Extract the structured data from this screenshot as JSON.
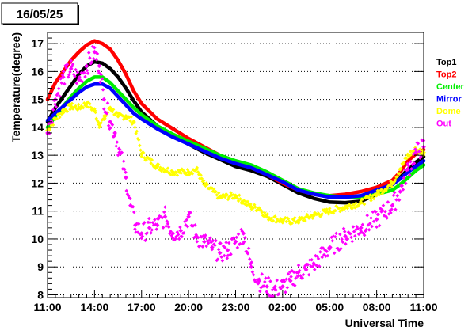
{
  "chart_data": {
    "type": "line",
    "title": "16/05/25",
    "xlabel": "Universal Time",
    "ylabel": "Temperature(degree)",
    "x_ticks": [
      "11:00",
      "14:00",
      "17:00",
      "20:00",
      "23:00",
      "02:00",
      "05:00",
      "08:00",
      "11:00"
    ],
    "x_hours": [
      0,
      3,
      6,
      9,
      12,
      15,
      18,
      21,
      24
    ],
    "xlim": [
      0,
      24
    ],
    "ylim": [
      7.9,
      17.4
    ],
    "y_ticks": [
      8,
      9,
      10,
      11,
      12,
      13,
      14,
      15,
      16,
      17
    ],
    "grid": {
      "horizontal_dotted": true
    },
    "legend_position": "right",
    "series": [
      {
        "name": "Top1",
        "color": "#000000",
        "kind": "thick-line",
        "x": [
          0,
          0.5,
          1,
          1.5,
          2,
          2.5,
          3,
          3.5,
          4,
          4.5,
          5,
          5.5,
          6,
          7,
          8,
          9,
          10,
          11,
          12,
          13,
          14,
          15,
          16,
          17,
          18,
          19,
          20,
          21,
          22,
          22.5,
          23,
          23.5,
          24
        ],
        "values": [
          14.2,
          14.7,
          15.1,
          15.5,
          15.9,
          16.2,
          16.35,
          16.3,
          16.1,
          15.8,
          15.4,
          14.95,
          14.55,
          14.05,
          13.7,
          13.4,
          13.1,
          12.85,
          12.6,
          12.45,
          12.25,
          11.95,
          11.65,
          11.45,
          11.32,
          11.3,
          11.35,
          11.6,
          11.95,
          12.2,
          12.5,
          12.75,
          12.95
        ]
      },
      {
        "name": "Top2",
        "color": "#ff0000",
        "kind": "thick-line",
        "x": [
          0,
          0.5,
          1,
          1.5,
          2,
          2.5,
          3,
          3.5,
          4,
          4.5,
          5,
          5.5,
          6,
          7,
          8,
          9,
          10,
          11,
          12,
          13,
          14,
          15,
          16,
          17,
          18,
          19,
          20,
          21,
          22,
          22.5,
          23,
          23.5,
          24
        ],
        "values": [
          15.0,
          15.6,
          16.0,
          16.4,
          16.7,
          16.95,
          17.1,
          17.0,
          16.8,
          16.4,
          15.9,
          15.3,
          14.85,
          14.3,
          13.95,
          13.6,
          13.3,
          13.0,
          12.75,
          12.55,
          12.3,
          12.0,
          11.75,
          11.6,
          11.55,
          11.6,
          11.7,
          11.85,
          12.1,
          12.4,
          12.8,
          13.05,
          13.2
        ]
      },
      {
        "name": "Center",
        "color": "#00ee00",
        "kind": "thick-line",
        "x": [
          0,
          0.5,
          1,
          1.5,
          2,
          2.5,
          3,
          3.5,
          4,
          4.5,
          5,
          5.5,
          6,
          7,
          8,
          9,
          10,
          11,
          12,
          13,
          14,
          15,
          16,
          17,
          18,
          19,
          20,
          21,
          22,
          22.5,
          23,
          23.5,
          24
        ],
        "values": [
          14.0,
          14.4,
          14.75,
          15.1,
          15.4,
          15.65,
          15.8,
          15.8,
          15.6,
          15.3,
          15.0,
          14.7,
          14.45,
          14.05,
          13.75,
          13.5,
          13.25,
          13.0,
          12.8,
          12.65,
          12.4,
          12.1,
          11.8,
          11.65,
          11.55,
          11.5,
          11.5,
          11.6,
          11.75,
          11.95,
          12.2,
          12.45,
          12.65
        ]
      },
      {
        "name": "Mirror",
        "color": "#0000ff",
        "kind": "thick-line",
        "x": [
          0,
          0.5,
          1,
          1.5,
          2,
          2.5,
          3,
          3.5,
          4,
          4.5,
          5,
          5.5,
          6,
          7,
          8,
          9,
          10,
          11,
          12,
          13,
          14,
          15,
          16,
          17,
          18,
          19,
          20,
          21,
          22,
          22.5,
          23,
          23.5,
          24
        ],
        "values": [
          14.25,
          14.5,
          14.75,
          15.0,
          15.25,
          15.45,
          15.55,
          15.55,
          15.4,
          15.1,
          14.8,
          14.5,
          14.3,
          13.95,
          13.65,
          13.4,
          13.15,
          12.9,
          12.7,
          12.55,
          12.3,
          12.05,
          11.75,
          11.6,
          11.5,
          11.5,
          11.55,
          11.75,
          11.95,
          12.15,
          12.4,
          12.6,
          12.8
        ]
      },
      {
        "name": "Dome",
        "color": "#ffff00",
        "kind": "scatter-band",
        "x": [
          0,
          0.5,
          1,
          1.5,
          2,
          2.5,
          3,
          3.3,
          3.6,
          4,
          4.5,
          5,
          5.5,
          6,
          7,
          8,
          9,
          9.5,
          10,
          11,
          12,
          13,
          13.5,
          14,
          15,
          16,
          17,
          18,
          19,
          20,
          21,
          22,
          22.5,
          23,
          23.5,
          24
        ],
        "values": [
          13.9,
          14.3,
          14.6,
          14.75,
          14.7,
          14.85,
          14.6,
          14.1,
          14.3,
          14.7,
          14.4,
          14.4,
          14.2,
          13.05,
          12.6,
          12.4,
          12.4,
          12.5,
          11.95,
          11.5,
          11.55,
          11.15,
          11.1,
          10.8,
          10.65,
          10.65,
          10.85,
          11.0,
          11.15,
          11.3,
          11.6,
          12.0,
          12.5,
          13.0,
          13.2,
          13.1
        ]
      },
      {
        "name": "Out",
        "color": "#ff00ff",
        "kind": "scatter",
        "x": [
          0,
          0.5,
          1,
          1.5,
          2,
          2.5,
          3,
          3.3,
          3.6,
          4,
          4.3,
          4.6,
          5,
          5.3,
          5.6,
          6,
          6.5,
          7,
          7.5,
          8,
          8.5,
          9,
          9.5,
          10,
          10.5,
          11,
          11.5,
          12,
          12.5,
          13,
          13.5,
          14,
          14.5,
          15,
          15.5,
          16,
          16.5,
          17,
          18,
          19,
          20,
          21,
          22,
          22.5,
          23,
          23.5,
          24
        ],
        "values": [
          13.8,
          15.0,
          15.8,
          16.1,
          15.7,
          16.2,
          16.7,
          16.2,
          15.0,
          14.2,
          13.8,
          13.1,
          12.2,
          11.2,
          10.5,
          10.2,
          10.4,
          10.5,
          10.8,
          10.2,
          10.3,
          10.8,
          10.1,
          9.9,
          9.7,
          9.5,
          9.6,
          9.9,
          10.2,
          9.0,
          8.5,
          8.3,
          8.2,
          8.3,
          8.5,
          8.8,
          8.9,
          9.1,
          9.7,
          10.1,
          10.4,
          10.7,
          11.2,
          11.7,
          12.5,
          13.1,
          13.3
        ]
      }
    ]
  }
}
